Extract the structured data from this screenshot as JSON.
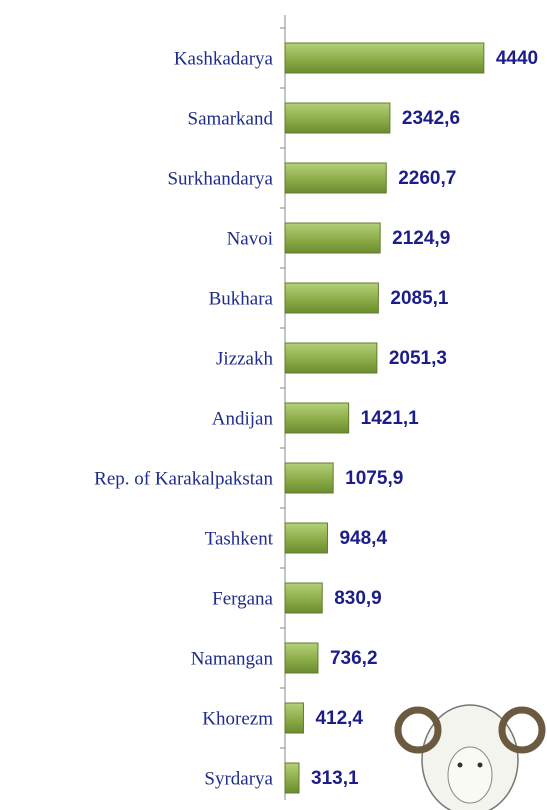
{
  "chart_data": {
    "type": "bar",
    "orientation": "horizontal",
    "categories": [
      "Kashkadarya",
      "Samarkand",
      "Surkhandarya",
      "Navoi",
      "Bukhara",
      "Jizzakh",
      "Andijan",
      "Rep. of Karakalpakstan",
      "Tashkent",
      "Fergana",
      "Namangan",
      "Khorezm",
      "Syrdarya"
    ],
    "values": [
      4440,
      2342.6,
      2260.7,
      2124.9,
      2085.1,
      2051.3,
      1421.1,
      1075.9,
      948.4,
      830.9,
      736.2,
      412.4,
      313.1
    ],
    "value_labels": [
      "4440",
      "2342,6",
      "2260,7",
      "2124,9",
      "2085,1",
      "2051,3",
      "1421,1",
      "1075,9",
      "948,4",
      "830,9",
      "736,2",
      "412,4",
      "313,1"
    ],
    "color": "#8fb04c",
    "xlim": [
      0,
      4600
    ]
  }
}
